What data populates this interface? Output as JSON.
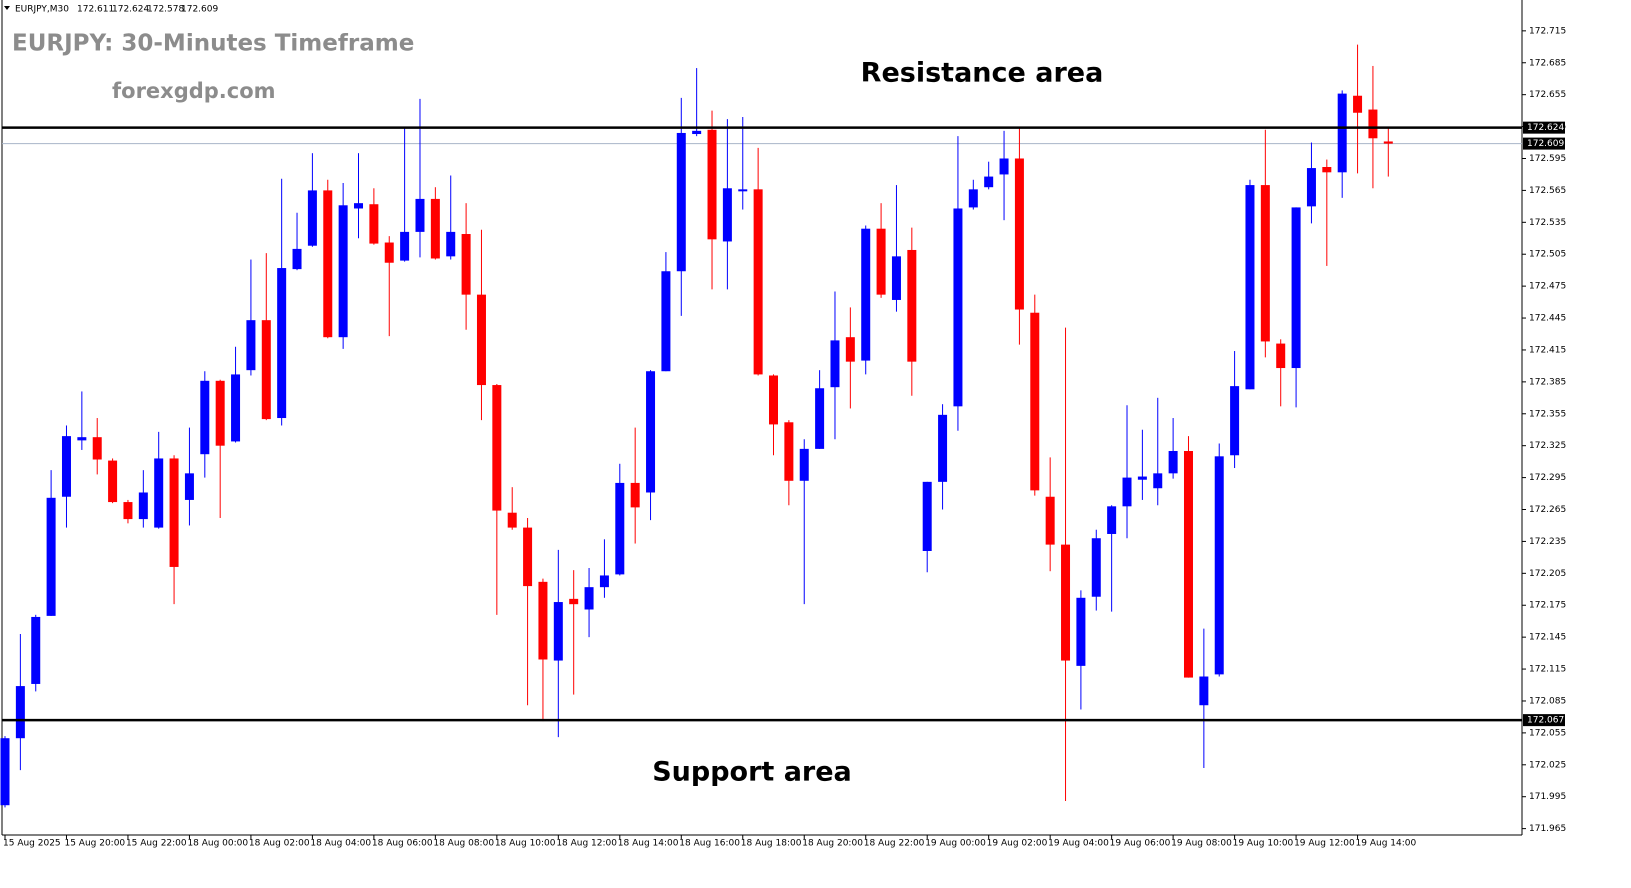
{
  "chart_data": {
    "type": "candlestick",
    "info_bar": {
      "symbol": "EURJPY,M30",
      "open": 172.611,
      "high": 172.624,
      "low": 172.578,
      "close": 172.609
    },
    "title": "EURJPY: 30-Minutes Timeframe",
    "subtitle": "forexgdp.com",
    "annotations": [
      "Resistance area",
      "Support area"
    ],
    "x": [
      "15 Aug 2025",
      null,
      null,
      null,
      "15 Aug 20:00",
      null,
      null,
      null,
      "15 Aug 22:00",
      null,
      null,
      null,
      "18 Aug 00:00",
      null,
      null,
      null,
      "18 Aug 02:00",
      null,
      null,
      null,
      "18 Aug 04:00",
      null,
      null,
      null,
      "18 Aug 06:00",
      null,
      null,
      null,
      "18 Aug 08:00",
      null,
      null,
      null,
      "18 Aug 10:00",
      null,
      null,
      null,
      "18 Aug 12:00",
      null,
      null,
      null,
      "18 Aug 14:00",
      null,
      null,
      null,
      "18 Aug 16:00",
      null,
      null,
      null,
      "18 Aug 18:00",
      null,
      null,
      null,
      "18 Aug 20:00",
      null,
      null,
      null,
      "18 Aug 22:00",
      null,
      null,
      null,
      "19 Aug 00:00",
      null,
      null,
      null,
      "19 Aug 02:00",
      null,
      null,
      null,
      "19 Aug 04:00",
      null,
      null,
      null,
      "19 Aug 06:00",
      null,
      null,
      null,
      "19 Aug 08:00",
      null,
      null,
      null,
      "19 Aug 10:00",
      null,
      null,
      null,
      "19 Aug 12:00",
      null,
      null,
      null,
      "19 Aug 14:00",
      null,
      null
    ],
    "open": [
      171.987,
      172.05,
      172.101,
      172.165,
      172.277,
      172.33,
      172.333,
      172.311,
      172.272,
      172.256,
      172.248,
      172.313,
      172.274,
      172.317,
      172.386,
      172.329,
      172.396,
      172.443,
      172.351,
      172.491,
      172.513,
      172.565,
      172.427,
      172.548,
      172.552,
      172.516,
      172.499,
      172.526,
      172.557,
      172.503,
      172.524,
      172.467,
      172.382,
      172.262,
      172.248,
      172.197,
      172.123,
      172.181,
      172.171,
      172.192,
      172.204,
      172.29,
      172.281,
      172.395,
      172.489,
      172.618,
      172.622,
      172.517,
      172.565,
      172.566,
      172.391,
      172.347,
      172.292,
      172.322,
      172.38,
      172.427,
      172.405,
      172.529,
      172.462,
      172.509,
      172.226,
      172.291,
      172.362,
      172.549,
      172.568,
      172.58,
      172.595,
      172.45,
      172.277,
      172.232,
      172.118,
      172.183,
      172.242,
      172.268,
      172.293,
      172.285,
      172.299,
      172.32,
      172.081,
      172.11,
      172.316,
      172.378,
      172.57,
      172.421,
      172.398,
      172.55,
      172.587,
      172.582,
      172.654,
      172.641,
      172.611
    ],
    "high": [
      172.052,
      172.148,
      172.166,
      172.302,
      172.344,
      172.376,
      172.351,
      172.313,
      172.274,
      172.302,
      172.338,
      172.316,
      172.342,
      172.395,
      172.387,
      172.418,
      172.5,
      172.506,
      172.576,
      172.544,
      172.6,
      172.575,
      172.572,
      172.6,
      172.567,
      172.522,
      172.625,
      172.651,
      172.568,
      172.579,
      172.553,
      172.528,
      172.383,
      172.286,
      172.257,
      172.2,
      172.227,
      172.208,
      172.21,
      172.237,
      172.308,
      172.342,
      172.396,
      172.507,
      172.652,
      172.68,
      172.64,
      172.632,
      172.634,
      172.605,
      172.392,
      172.349,
      172.331,
      172.396,
      172.47,
      172.455,
      172.532,
      172.553,
      172.57,
      172.53,
      172.291,
      172.364,
      172.616,
      172.575,
      172.592,
      172.621,
      172.624,
      172.467,
      172.314,
      172.436,
      172.189,
      172.246,
      172.269,
      172.363,
      172.34,
      172.37,
      172.351,
      172.334,
      172.153,
      172.327,
      172.414,
      172.575,
      172.622,
      172.425,
      172.549,
      172.61,
      172.594,
      172.659,
      172.702,
      172.682,
      172.624
    ],
    "low": [
      171.985,
      172.02,
      172.094,
      172.165,
      172.248,
      172.321,
      172.298,
      172.271,
      172.252,
      172.248,
      172.247,
      172.176,
      172.25,
      172.295,
      172.257,
      172.328,
      172.391,
      172.349,
      172.344,
      172.49,
      172.512,
      172.426,
      172.416,
      172.52,
      172.514,
      172.428,
      172.498,
      172.502,
      172.5,
      172.5,
      172.434,
      172.349,
      172.166,
      172.246,
      172.081,
      172.066,
      172.051,
      172.091,
      172.145,
      172.182,
      172.203,
      172.233,
      172.255,
      172.395,
      172.447,
      172.616,
      172.472,
      172.472,
      172.547,
      172.391,
      172.316,
      172.269,
      172.176,
      172.322,
      172.331,
      172.36,
      172.392,
      172.464,
      172.451,
      172.372,
      172.206,
      172.265,
      172.339,
      172.547,
      172.566,
      172.537,
      172.42,
      172.278,
      172.207,
      171.991,
      172.077,
      172.17,
      172.169,
      172.238,
      172.274,
      172.269,
      172.294,
      172.107,
      172.022,
      172.108,
      172.304,
      172.378,
      172.408,
      172.362,
      172.361,
      172.534,
      172.494,
      172.558,
      172.581,
      172.567,
      172.578
    ],
    "close": [
      172.05,
      172.099,
      172.164,
      172.276,
      172.334,
      172.333,
      172.312,
      172.272,
      172.256,
      172.281,
      172.313,
      172.211,
      172.299,
      172.386,
      172.325,
      172.392,
      172.443,
      172.35,
      172.492,
      172.51,
      172.565,
      172.427,
      172.551,
      172.553,
      172.515,
      172.497,
      172.526,
      172.557,
      172.501,
      172.526,
      172.467,
      172.382,
      172.264,
      172.248,
      172.193,
      172.124,
      172.178,
      172.176,
      172.192,
      172.203,
      172.29,
      172.267,
      172.395,
      172.489,
      172.619,
      172.621,
      172.519,
      172.567,
      172.566,
      172.392,
      172.345,
      172.292,
      172.322,
      172.379,
      172.424,
      172.404,
      172.529,
      172.467,
      172.503,
      172.404,
      172.291,
      172.354,
      172.548,
      172.566,
      172.578,
      172.595,
      172.453,
      172.283,
      172.232,
      172.123,
      172.182,
      172.238,
      172.268,
      172.295,
      172.296,
      172.299,
      172.32,
      172.107,
      172.108,
      172.315,
      172.381,
      172.57,
      172.423,
      172.398,
      172.549,
      172.586,
      172.582,
      172.656,
      172.638,
      172.614,
      172.609
    ],
    "up_color": "#0000ff",
    "down_color": "#ff0000",
    "ylim": [
      171.959,
      172.744
    ],
    "yticks": [
      172.715,
      172.685,
      172.655,
      172.625,
      172.595,
      172.565,
      172.535,
      172.505,
      172.475,
      172.445,
      172.415,
      172.385,
      172.355,
      172.325,
      172.295,
      172.265,
      172.235,
      172.205,
      172.175,
      172.145,
      172.115,
      172.085,
      172.055,
      172.025,
      171.995,
      171.965
    ],
    "hlines": [
      {
        "value": 172.624,
        "color": "#000000"
      },
      {
        "value": 172.067,
        "color": "#000000"
      }
    ],
    "bid_line": {
      "value": 172.609,
      "color": "#a8b4c8"
    }
  }
}
